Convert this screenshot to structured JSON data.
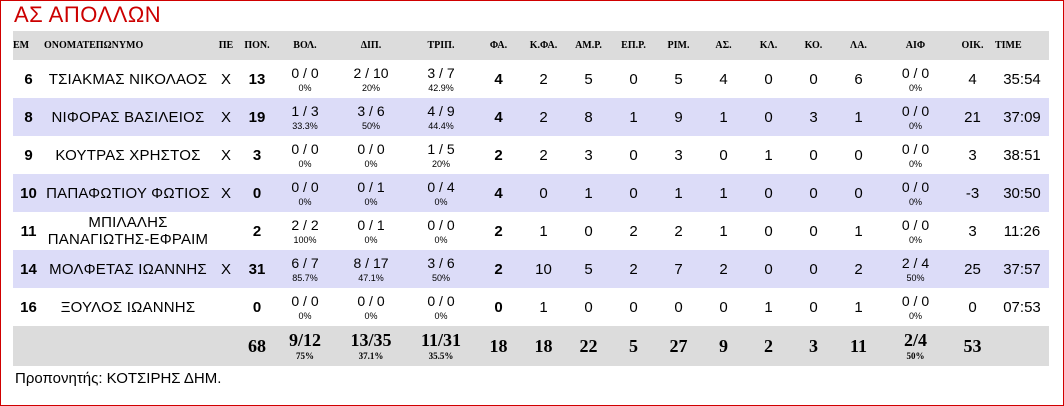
{
  "team_title": "ΑΣ ΑΠΟΛΛΩΝ",
  "headers": [
    "ΕΜ",
    "ΟΝΟΜΑΤΕΠΩΝΥΜΟ",
    "ΠΕ",
    "ΠΟΝ.",
    "ΒΟΛ.",
    "ΔΙΠ.",
    "ΤΡΙΠ.",
    "ΦΑ.",
    "Κ.ΦΑ.",
    "ΑΜ.Ρ.",
    "ΕΠ.Ρ.",
    "ΡΙΜ.",
    "ΑΣ.",
    "ΚΛ.",
    "ΚΟ.",
    "ΛΑ.",
    "ΑΙΦ",
    "ΟΙΚ.",
    "TIME"
  ],
  "players": [
    {
      "number": "6",
      "name": "ΤΣΙΑΚΜΑΣ ΝΙΚΟΛΑΟΣ",
      "starter": "X",
      "points": "13",
      "ft": "0 / 0",
      "ft_pct": "0%",
      "two": "2 / 10",
      "two_pct": "20%",
      "three": "3 / 7",
      "three_pct": "42.9%",
      "fouls": "4",
      "fouls_drawn": "2",
      "def_reb": "5",
      "off_reb": "0",
      "reb": "5",
      "ast": "4",
      "stl": "0",
      "blk": "0",
      "to": "6",
      "aif": "0 / 0",
      "aif_pct": "0%",
      "eff": "4",
      "time": "35:54"
    },
    {
      "number": "8",
      "name": "ΝΙΦΟΡΑΣ ΒΑΣΙΛΕΙΟΣ",
      "starter": "X",
      "points": "19",
      "ft": "1 / 3",
      "ft_pct": "33.3%",
      "two": "3 / 6",
      "two_pct": "50%",
      "three": "4 / 9",
      "three_pct": "44.4%",
      "fouls": "4",
      "fouls_drawn": "2",
      "def_reb": "8",
      "off_reb": "1",
      "reb": "9",
      "ast": "1",
      "stl": "0",
      "blk": "3",
      "to": "1",
      "aif": "0 / 0",
      "aif_pct": "0%",
      "eff": "21",
      "time": "37:09"
    },
    {
      "number": "9",
      "name": "ΚΟΥΤΡΑΣ ΧΡΗΣΤΟΣ",
      "starter": "X",
      "points": "3",
      "ft": "0 / 0",
      "ft_pct": "0%",
      "two": "0 / 0",
      "two_pct": "0%",
      "three": "1 / 5",
      "three_pct": "20%",
      "fouls": "2",
      "fouls_drawn": "2",
      "def_reb": "3",
      "off_reb": "0",
      "reb": "3",
      "ast": "0",
      "stl": "1",
      "blk": "0",
      "to": "0",
      "aif": "0 / 0",
      "aif_pct": "0%",
      "eff": "3",
      "time": "38:51"
    },
    {
      "number": "10",
      "name": "ΠΑΠΑΦΩΤΙΟΥ ΦΩΤΙΟΣ",
      "starter": "X",
      "points": "0",
      "ft": "0 / 0",
      "ft_pct": "0%",
      "two": "0 / 1",
      "two_pct": "0%",
      "three": "0 / 4",
      "three_pct": "0%",
      "fouls": "4",
      "fouls_drawn": "0",
      "def_reb": "1",
      "off_reb": "0",
      "reb": "1",
      "ast": "1",
      "stl": "0",
      "blk": "0",
      "to": "0",
      "aif": "0 / 0",
      "aif_pct": "0%",
      "eff": "-3",
      "time": "30:50"
    },
    {
      "number": "11",
      "name": "ΜΠΙΛΑΛΗΣ ΠΑΝΑΓΙΩΤΗΣ-ΕΦΡΑΙΜ",
      "starter": "",
      "points": "2",
      "ft": "2 / 2",
      "ft_pct": "100%",
      "two": "0 / 1",
      "two_pct": "0%",
      "three": "0 / 0",
      "three_pct": "0%",
      "fouls": "2",
      "fouls_drawn": "1",
      "def_reb": "0",
      "off_reb": "2",
      "reb": "2",
      "ast": "1",
      "stl": "0",
      "blk": "0",
      "to": "1",
      "aif": "0 / 0",
      "aif_pct": "0%",
      "eff": "3",
      "time": "11:26"
    },
    {
      "number": "14",
      "name": "ΜΟΛΦΕΤΑΣ ΙΩΑΝΝΗΣ",
      "starter": "X",
      "points": "31",
      "ft": "6 / 7",
      "ft_pct": "85.7%",
      "two": "8 / 17",
      "two_pct": "47.1%",
      "three": "3 / 6",
      "three_pct": "50%",
      "fouls": "2",
      "fouls_drawn": "10",
      "def_reb": "5",
      "off_reb": "2",
      "reb": "7",
      "ast": "2",
      "stl": "0",
      "blk": "0",
      "to": "2",
      "aif": "2 / 4",
      "aif_pct": "50%",
      "eff": "25",
      "time": "37:57"
    },
    {
      "number": "16",
      "name": "ΞΟΥΛΟΣ ΙΩΑΝΝΗΣ",
      "starter": "",
      "points": "0",
      "ft": "0 / 0",
      "ft_pct": "0%",
      "two": "0 / 0",
      "two_pct": "0%",
      "three": "0 / 0",
      "three_pct": "0%",
      "fouls": "0",
      "fouls_drawn": "1",
      "def_reb": "0",
      "off_reb": "0",
      "reb": "0",
      "ast": "0",
      "stl": "1",
      "blk": "0",
      "to": "1",
      "aif": "0 / 0",
      "aif_pct": "0%",
      "eff": "0",
      "time": "07:53"
    }
  ],
  "totals": {
    "points": "68",
    "ft": "9/12",
    "ft_pct": "75%",
    "two": "13/35",
    "two_pct": "37.1%",
    "three": "11/31",
    "three_pct": "35.5%",
    "fouls": "18",
    "fouls_drawn": "18",
    "def_reb": "22",
    "off_reb": "5",
    "reb": "27",
    "ast": "9",
    "stl": "2",
    "blk": "3",
    "to": "11",
    "aif": "2/4",
    "aif_pct": "50%",
    "eff": "53"
  },
  "coach": "Προπονητής: ΚΟΤΣΙΡΗΣ ΔΗΜ."
}
